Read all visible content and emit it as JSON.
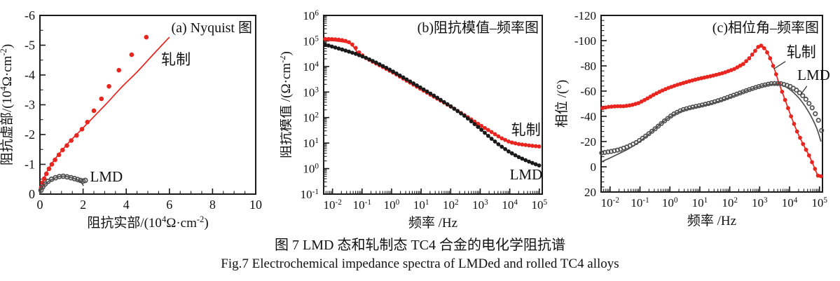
{
  "caption": {
    "line_zh": "图 7  LMD 态和轧制态 TC4 合金的电化学阻抗谱",
    "line_en": "Fig.7  Electrochemical impedance spectra of LMDed and rolled TC4 alloys"
  },
  "colors": {
    "rolled": "#e8251f",
    "lmd_gray": "#4f4f4f",
    "lmd_black": "#1a1a1a",
    "axis": "#1a1a1a",
    "text": "#111111"
  },
  "chart_data": [
    {
      "id": "nyquist",
      "type": "scatter",
      "title": "(a) Nyquist 图",
      "xlabel": "阻抗实部/(10^{4}Ω·cm^{-2})",
      "ylabel": "阻抗虚部/(10^{4}Ω·cm^{-2})",
      "xlim": [
        0,
        10
      ],
      "ylim": [
        0,
        -6
      ],
      "xscale": "linear",
      "yscale": "linear",
      "xticks": [
        0,
        2,
        4,
        6,
        8,
        10
      ],
      "yticks": [
        0,
        -1,
        -2,
        -3,
        -4,
        -5,
        -6
      ],
      "xminor_step": 0.5,
      "yminor_step": 0.5,
      "grid": false,
      "series": [
        {
          "name": "轧制",
          "color": "rolled",
          "style": "filled",
          "r": 3.3,
          "line": [
            [
              0,
              0
            ],
            [
              0.08,
              -0.3
            ],
            [
              0.2,
              -0.55
            ],
            [
              0.4,
              -0.85
            ],
            [
              0.7,
              -1.18
            ],
            [
              1.0,
              -1.45
            ],
            [
              1.4,
              -1.78
            ],
            [
              1.9,
              -2.15
            ],
            [
              2.5,
              -2.6
            ],
            [
              3.1,
              -3.05
            ],
            [
              3.8,
              -3.6
            ],
            [
              4.5,
              -4.1
            ],
            [
              5.2,
              -4.65
            ],
            [
              6.0,
              -5.27
            ]
          ],
          "dots": {
            "mode": "points",
            "points": [
              [
                0.06,
                -0.22
              ],
              [
                0.12,
                -0.38
              ],
              [
                0.2,
                -0.52
              ],
              [
                0.3,
                -0.68
              ],
              [
                0.42,
                -0.85
              ],
              [
                0.55,
                -1.0
              ],
              [
                0.7,
                -1.15
              ],
              [
                0.88,
                -1.32
              ],
              [
                1.05,
                -1.48
              ],
              [
                1.25,
                -1.63
              ],
              [
                1.45,
                -1.8
              ],
              [
                1.7,
                -1.97
              ],
              [
                1.95,
                -2.18
              ],
              [
                2.2,
                -2.42
              ],
              [
                2.5,
                -2.8
              ],
              [
                2.85,
                -3.2
              ],
              [
                3.2,
                -3.62
              ],
              [
                3.66,
                -4.16
              ],
              [
                4.25,
                -4.68
              ],
              [
                4.93,
                -5.27
              ]
            ]
          }
        },
        {
          "name": "LMD",
          "color": "lmd_gray",
          "style": "open",
          "r": 3.0,
          "line": [
            [
              0,
              0
            ],
            [
              0.08,
              -0.18
            ],
            [
              0.2,
              -0.3
            ],
            [
              0.38,
              -0.42
            ],
            [
              0.6,
              -0.51
            ],
            [
              0.85,
              -0.58
            ],
            [
              1.1,
              -0.6
            ],
            [
              1.4,
              -0.56
            ],
            [
              1.7,
              -0.49
            ],
            [
              1.9,
              -0.4
            ],
            [
              2.02,
              -0.28
            ]
          ],
          "dots": {
            "mode": "points",
            "points": [
              [
                0.05,
                -0.13
              ],
              [
                0.13,
                -0.24
              ],
              [
                0.24,
                -0.34
              ],
              [
                0.38,
                -0.43
              ],
              [
                0.54,
                -0.5
              ],
              [
                0.72,
                -0.55
              ],
              [
                0.9,
                -0.59
              ],
              [
                1.08,
                -0.6
              ],
              [
                1.26,
                -0.58
              ],
              [
                1.44,
                -0.55
              ],
              [
                1.6,
                -0.52
              ],
              [
                1.75,
                -0.49
              ],
              [
                1.88,
                -0.46
              ],
              [
                2.0,
                -0.44
              ],
              [
                2.1,
                -0.46
              ]
            ]
          }
        }
      ],
      "labels": [
        {
          "text": "轧制",
          "x": 5.62,
          "y": -4.35,
          "anchor": "start"
        },
        {
          "text": "LMD",
          "x": 2.32,
          "y": -0.42,
          "anchor": "start"
        }
      ]
    },
    {
      "id": "bode-magnitude",
      "type": "line",
      "title": "(b)阻抗模值–频率图",
      "xlabel": "频率 /Hz",
      "ylabel": "阻抗模值 /(Ω·cm^{-2})",
      "xlim": [
        -2.3,
        5.1
      ],
      "ylim": [
        -1,
        6
      ],
      "xscale": "log",
      "yscale": "log",
      "xticks": [
        -2,
        -1,
        0,
        1,
        2,
        3,
        4,
        5
      ],
      "yticks": [
        -1,
        0,
        1,
        2,
        3,
        4,
        5,
        6
      ],
      "grid": false,
      "series": [
        {
          "name": "轧制",
          "color": "rolled",
          "style": "filled",
          "r": 2.9,
          "line": [
            [
              -2.25,
              5.03
            ],
            [
              -2.0,
              5.01
            ],
            [
              -1.75,
              4.98
            ],
            [
              -1.5,
              4.93
            ],
            [
              -1.35,
              4.85
            ],
            [
              -1.2,
              4.62
            ],
            [
              -1.05,
              4.45
            ],
            [
              -0.8,
              4.3
            ],
            [
              -0.5,
              4.12
            ],
            [
              -0.2,
              3.93
            ],
            [
              0.1,
              3.73
            ],
            [
              0.5,
              3.45
            ],
            [
              1.0,
              3.11
            ],
            [
              1.5,
              2.77
            ],
            [
              2.0,
              2.43
            ],
            [
              2.5,
              2.07
            ],
            [
              3.0,
              1.7
            ],
            [
              3.4,
              1.42
            ],
            [
              3.7,
              1.2
            ],
            [
              4.0,
              1.04
            ],
            [
              4.3,
              0.96
            ],
            [
              4.7,
              0.9
            ],
            [
              5.05,
              0.86
            ]
          ],
          "dots": {
            "mode": "along",
            "step": 0.115,
            "anchors": [
              [
                -2.25,
                5.08
              ],
              [
                -2.0,
                5.07
              ],
              [
                -1.75,
                5.05
              ],
              [
                -1.55,
                5.0
              ],
              [
                -1.4,
                4.93
              ],
              [
                -1.25,
                4.78
              ],
              [
                -1.1,
                4.55
              ],
              [
                -0.9,
                4.35
              ],
              [
                -0.6,
                4.16
              ],
              [
                -0.3,
                3.98
              ],
              [
                0.1,
                3.73
              ],
              [
                0.5,
                3.45
              ],
              [
                1.0,
                3.11
              ],
              [
                1.5,
                2.77
              ],
              [
                2.0,
                2.43
              ],
              [
                2.5,
                2.07
              ],
              [
                3.0,
                1.7
              ],
              [
                3.4,
                1.42
              ],
              [
                3.7,
                1.2
              ],
              [
                4.0,
                1.04
              ],
              [
                4.3,
                0.96
              ],
              [
                4.7,
                0.9
              ],
              [
                5.05,
                0.86
              ]
            ]
          }
        },
        {
          "name": "LMD",
          "color": "lmd_black",
          "style": "filled",
          "r": 2.9,
          "line": [
            [
              -2.25,
              4.86
            ],
            [
              -1.9,
              4.74
            ],
            [
              -1.55,
              4.62
            ],
            [
              -1.2,
              4.49
            ],
            [
              -0.85,
              4.33
            ],
            [
              -0.5,
              4.14
            ],
            [
              -0.15,
              3.93
            ],
            [
              0.2,
              3.7
            ],
            [
              0.6,
              3.43
            ],
            [
              1.0,
              3.16
            ],
            [
              1.5,
              2.81
            ],
            [
              2.0,
              2.44
            ],
            [
              2.5,
              2.04
            ],
            [
              3.0,
              1.56
            ],
            [
              3.35,
              1.2
            ],
            [
              3.65,
              0.92
            ],
            [
              3.95,
              0.68
            ],
            [
              4.25,
              0.48
            ],
            [
              4.55,
              0.32
            ],
            [
              4.85,
              0.18
            ],
            [
              5.05,
              0.1
            ]
          ],
          "dots": {
            "mode": "along",
            "step": 0.115
          }
        }
      ],
      "labels": [
        {
          "text": "轧制",
          "x": 4.05,
          "y": 1.32,
          "anchor": "start"
        },
        {
          "text": "LMD",
          "x": 4.0,
          "y": -0.42,
          "anchor": "start"
        }
      ]
    },
    {
      "id": "bode-phase",
      "type": "line",
      "title": "(c)相位角–频率图",
      "xlabel": "频率 /Hz",
      "ylabel": "相位 /(°)",
      "xlim": [
        -2.3,
        5.1
      ],
      "ylim": [
        20,
        -120
      ],
      "xscale": "log",
      "yscale": "linear",
      "xticks": [
        -2,
        -1,
        0,
        1,
        2,
        3,
        4,
        5
      ],
      "yticks": [
        20,
        0,
        -20,
        -40,
        -60,
        -80,
        -100,
        -120
      ],
      "yminor_step": 4,
      "grid": false,
      "series": [
        {
          "name": "轧制",
          "color": "rolled",
          "style": "filled",
          "r": 2.9,
          "line": [
            [
              -2.25,
              -46.5
            ],
            [
              -2.05,
              -47.5
            ],
            [
              -1.8,
              -48
            ],
            [
              -1.55,
              -48
            ],
            [
              -1.3,
              -48.8
            ],
            [
              -1.05,
              -50.5
            ],
            [
              -0.8,
              -53.5
            ],
            [
              -0.55,
              -57
            ],
            [
              -0.3,
              -60
            ],
            [
              -0.05,
              -62.5
            ],
            [
              0.25,
              -65
            ],
            [
              0.6,
              -67.5
            ],
            [
              1.0,
              -70
            ],
            [
              1.4,
              -72
            ],
            [
              1.8,
              -74.5
            ],
            [
              2.15,
              -77.5
            ],
            [
              2.45,
              -81.5
            ],
            [
              2.65,
              -86
            ],
            [
              2.82,
              -91
            ],
            [
              2.95,
              -95
            ],
            [
              3.05,
              -96
            ],
            [
              3.2,
              -93
            ],
            [
              3.35,
              -86
            ],
            [
              3.5,
              -77
            ],
            [
              3.65,
              -66
            ],
            [
              3.85,
              -53
            ],
            [
              4.05,
              -40
            ],
            [
              4.25,
              -28
            ],
            [
              4.45,
              -18
            ],
            [
              4.65,
              -9
            ],
            [
              4.8,
              -1
            ],
            [
              4.95,
              7
            ],
            [
              5.05,
              7.5
            ]
          ],
          "dots": {
            "mode": "along",
            "step": 0.1
          }
        },
        {
          "name": "LMD",
          "color": "lmd_gray",
          "style": "open",
          "r": 2.7,
          "line": [
            [
              -2.28,
              -4
            ],
            [
              -2.0,
              -7
            ],
            [
              -1.7,
              -10.5
            ],
            [
              -1.4,
              -14
            ],
            [
              -1.1,
              -18.5
            ],
            [
              -0.8,
              -24
            ],
            [
              -0.5,
              -30
            ],
            [
              -0.2,
              -36
            ],
            [
              0.1,
              -41
            ],
            [
              0.4,
              -44.5
            ],
            [
              0.7,
              -46.5
            ],
            [
              1.0,
              -48
            ],
            [
              1.35,
              -50
            ],
            [
              1.7,
              -52.5
            ],
            [
              2.05,
              -55.5
            ],
            [
              2.4,
              -58.8
            ],
            [
              2.75,
              -61.8
            ],
            [
              3.1,
              -64.2
            ],
            [
              3.4,
              -65.4
            ],
            [
              3.65,
              -65.2
            ],
            [
              3.9,
              -63
            ],
            [
              4.15,
              -58.5
            ],
            [
              4.4,
              -52
            ],
            [
              4.65,
              -43
            ],
            [
              4.9,
              -31
            ],
            [
              5.05,
              -20
            ]
          ],
          "dots": {
            "mode": "along",
            "step": 0.105,
            "anchors": [
              [
                -2.28,
                -11
              ],
              [
                -2.0,
                -12
              ],
              [
                -1.7,
                -13.5
              ],
              [
                -1.4,
                -16
              ],
              [
                -1.1,
                -19.5
              ],
              [
                -0.8,
                -24.5
              ],
              [
                -0.5,
                -30
              ],
              [
                -0.2,
                -36
              ],
              [
                0.1,
                -41.5
              ],
              [
                0.4,
                -45
              ],
              [
                0.7,
                -47
              ],
              [
                1.0,
                -48.5
              ],
              [
                1.35,
                -50.5
              ],
              [
                1.7,
                -53
              ],
              [
                2.05,
                -56
              ],
              [
                2.4,
                -59
              ],
              [
                2.75,
                -62
              ],
              [
                3.1,
                -64.5
              ],
              [
                3.4,
                -66
              ],
              [
                3.7,
                -66
              ],
              [
                4.0,
                -64
              ],
              [
                4.25,
                -60.5
              ],
              [
                4.5,
                -55
              ],
              [
                4.75,
                -47
              ],
              [
                4.95,
                -38
              ],
              [
                5.08,
                -28
              ]
            ]
          }
        }
      ],
      "labels": [
        {
          "text": "轧制",
          "x": 3.9,
          "y": -87,
          "anchor": "start",
          "line": [
            3.86,
            -83.5,
            3.47,
            -77.5
          ]
        },
        {
          "text": "LMD",
          "x": 4.26,
          "y": -69,
          "anchor": "start",
          "line": [
            4.58,
            -64,
            4.38,
            -57.5
          ]
        }
      ]
    }
  ]
}
